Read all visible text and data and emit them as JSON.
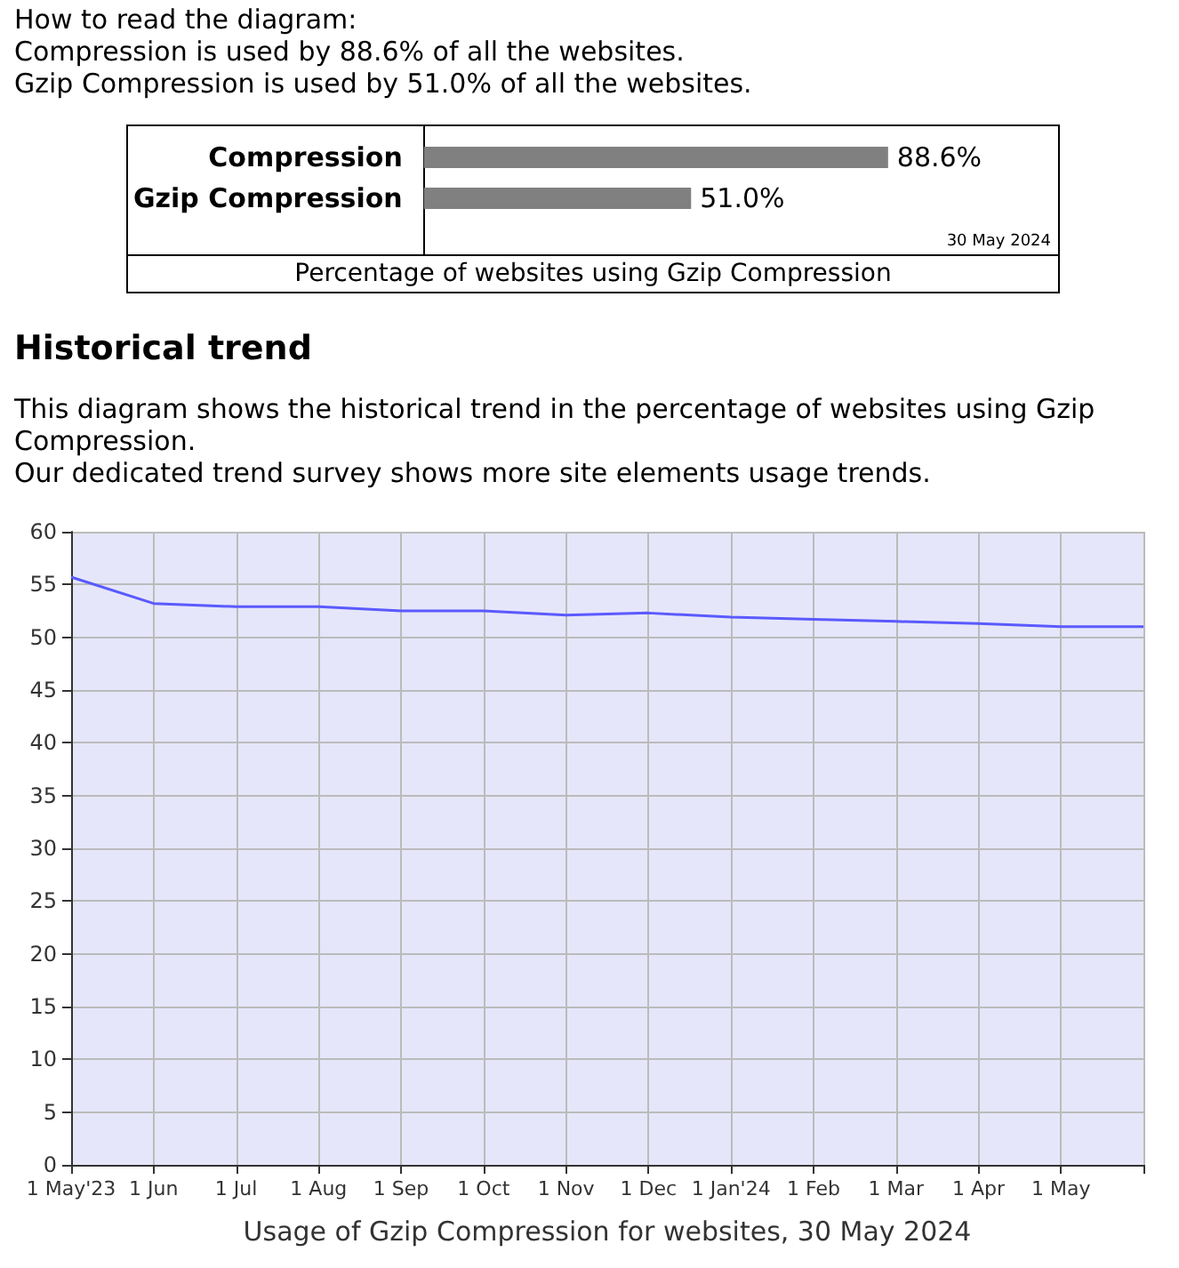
{
  "chart_data": [
    {
      "type": "bar",
      "orientation": "horizontal",
      "categories": [
        "Compression",
        "Gzip Compression"
      ],
      "values": [
        88.6,
        51.0
      ],
      "value_labels": [
        "88.6%",
        "51.0%"
      ],
      "color": "#808080",
      "xlabel": "Percentage of websites using Gzip Compression",
      "tick_labels": "y",
      "annotations": [
        "How to read the diagram:",
        "Compression is used by 88.6% of all the websites.",
        "Gzip Compression is used by 51.0% of all the websites.",
        "30 May 2024"
      ]
    },
    {
      "type": "line",
      "title": "Historical trend",
      "subtitle": "This diagram shows the historical trend in the percentage of websites using Gzip Compression.",
      "annotations": [
        "Our dedicated trend survey shows more site elements usage trends."
      ],
      "xlabel": "Usage of Gzip Compression for websites, 30 May 2024",
      "categories": [
        "1 May'23",
        "1 Jun",
        "1 Jul",
        "1 Aug",
        "1 Sep",
        "1 Oct",
        "1 Nov",
        "1 Dec",
        "1 Jan'24",
        "1 Feb",
        "1 Mar",
        "1 Apr",
        "1 May",
        null
      ],
      "series": [
        {
          "color": "#5a5aff",
          "values": [
            55.7,
            53.2,
            52.9,
            52.9,
            52.5,
            52.5,
            52.1,
            52.3,
            51.9,
            51.7,
            51.5,
            51.3,
            51.0,
            51.0
          ]
        }
      ],
      "ylim": [
        0,
        60
      ],
      "yticks": [
        0,
        5,
        10,
        15,
        20,
        25,
        30,
        35,
        40,
        45,
        50,
        55,
        60
      ],
      "grid": true,
      "marker": "none",
      "line_style": "solid"
    }
  ]
}
